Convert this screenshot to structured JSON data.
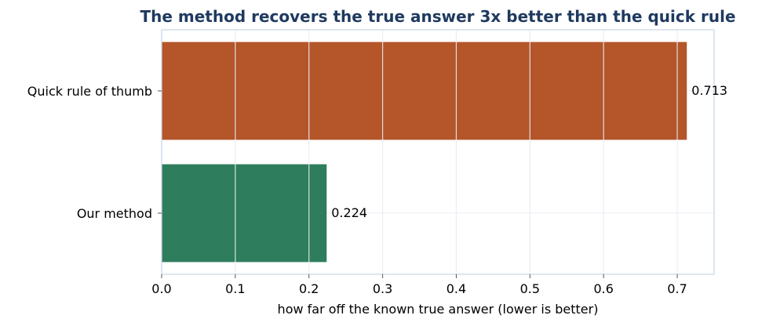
{
  "chart_data": {
    "type": "bar",
    "orientation": "horizontal",
    "title": "The method recovers the true answer 3x better than the quick rule",
    "xlabel": "how far off the known true answer (lower is better)",
    "ylabel": "",
    "categories": [
      "Quick rule of thumb",
      "Our method"
    ],
    "values": [
      0.713,
      0.224
    ],
    "value_labels": [
      "0.713",
      "0.224"
    ],
    "bar_colors": [
      "#b4552a",
      "#2e7d5c"
    ],
    "xlim": [
      0,
      0.75
    ],
    "xticks": [
      0.0,
      0.1,
      0.2,
      0.3,
      0.4,
      0.5,
      0.6,
      0.7
    ],
    "xtick_labels": [
      "0.0",
      "0.1",
      "0.2",
      "0.3",
      "0.4",
      "0.5",
      "0.6",
      "0.7"
    ],
    "grid": true,
    "title_color": "#1f3a5f",
    "spine_color": "#c8d4e3",
    "grid_color": "#e8edf3"
  }
}
